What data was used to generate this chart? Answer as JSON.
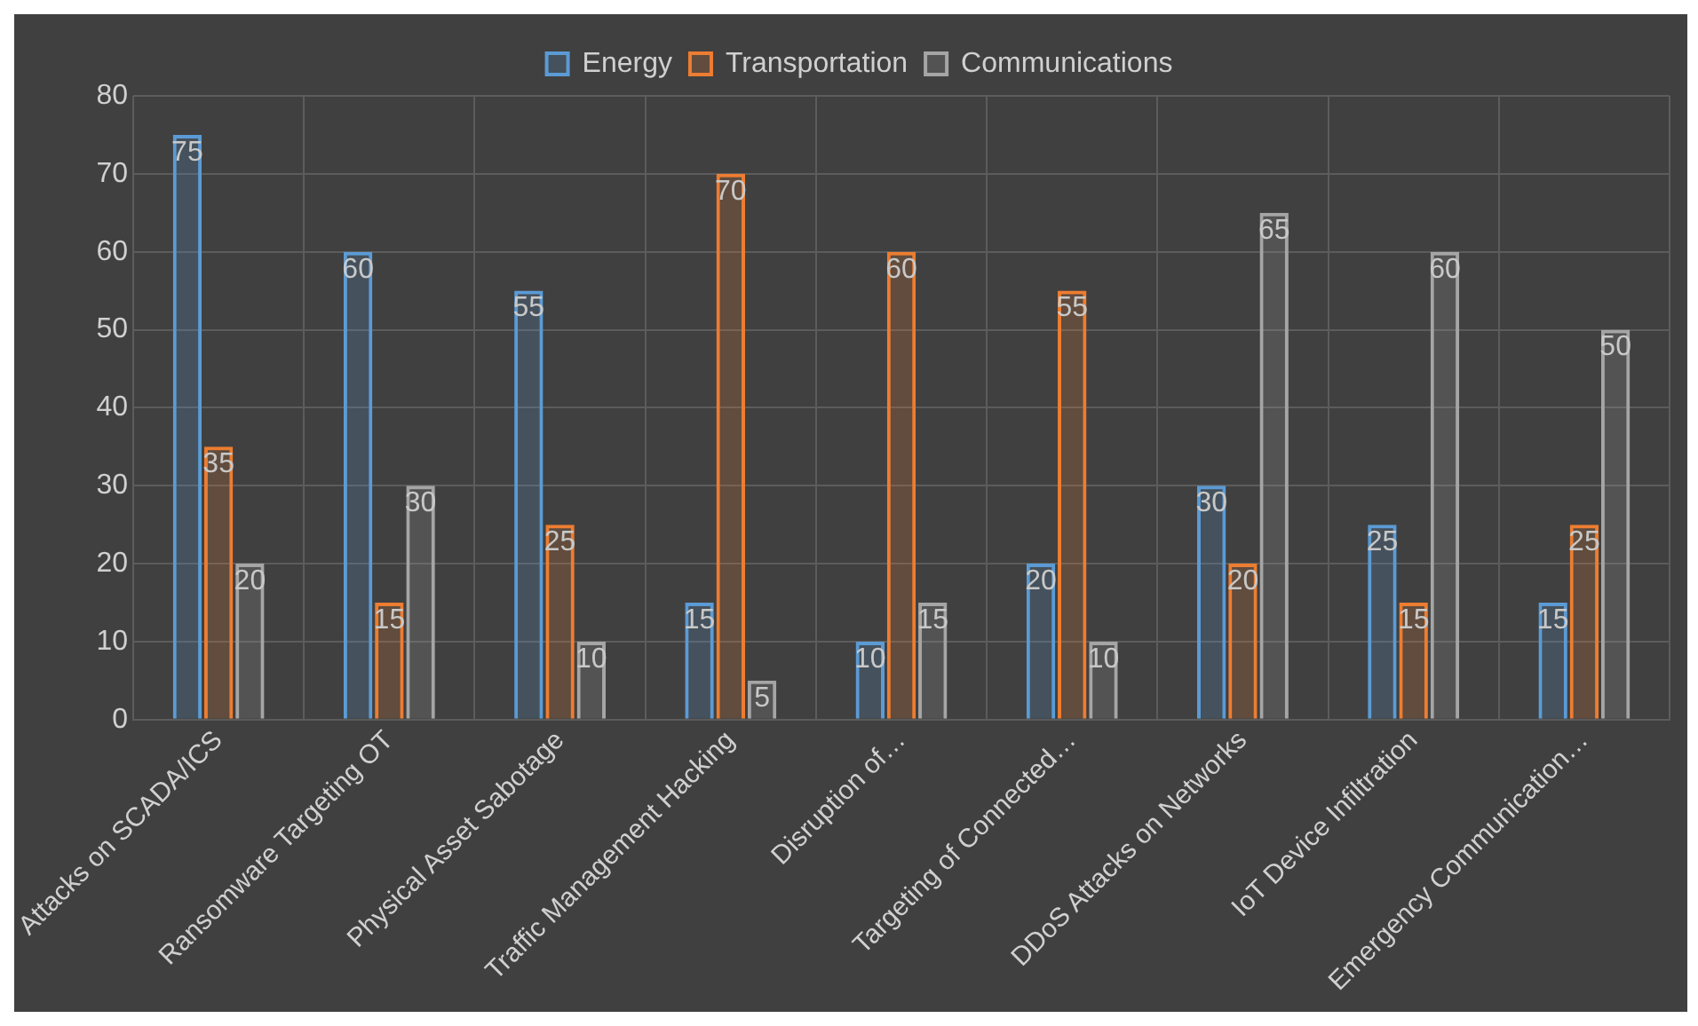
{
  "chart_data": {
    "type": "bar",
    "categories": [
      "Attacks on SCADA/ICS",
      "Ransomware Targeting OT",
      "Physical Asset Sabotage",
      "Traffic Management Hacking",
      "Disruption of…",
      "Targeting of Connected…",
      "DDoS Attacks on Networks",
      "IoT Device Infiltration",
      "Emergency Communication…"
    ],
    "series": [
      {
        "name": "Energy",
        "color": "#5b9bd5",
        "values": [
          75,
          60,
          55,
          15,
          10,
          20,
          30,
          25,
          15
        ]
      },
      {
        "name": "Transportation",
        "color": "#ed7d31",
        "values": [
          35,
          15,
          25,
          70,
          60,
          55,
          20,
          15,
          25
        ]
      },
      {
        "name": "Communications",
        "color": "#a5a5a5",
        "values": [
          20,
          30,
          10,
          5,
          15,
          10,
          65,
          60,
          50
        ]
      }
    ],
    "ylim": [
      0,
      80
    ],
    "yticks": [
      0,
      10,
      20,
      30,
      40,
      50,
      60,
      70,
      80
    ],
    "grid": true,
    "legend": "top",
    "data_labels": true
  }
}
